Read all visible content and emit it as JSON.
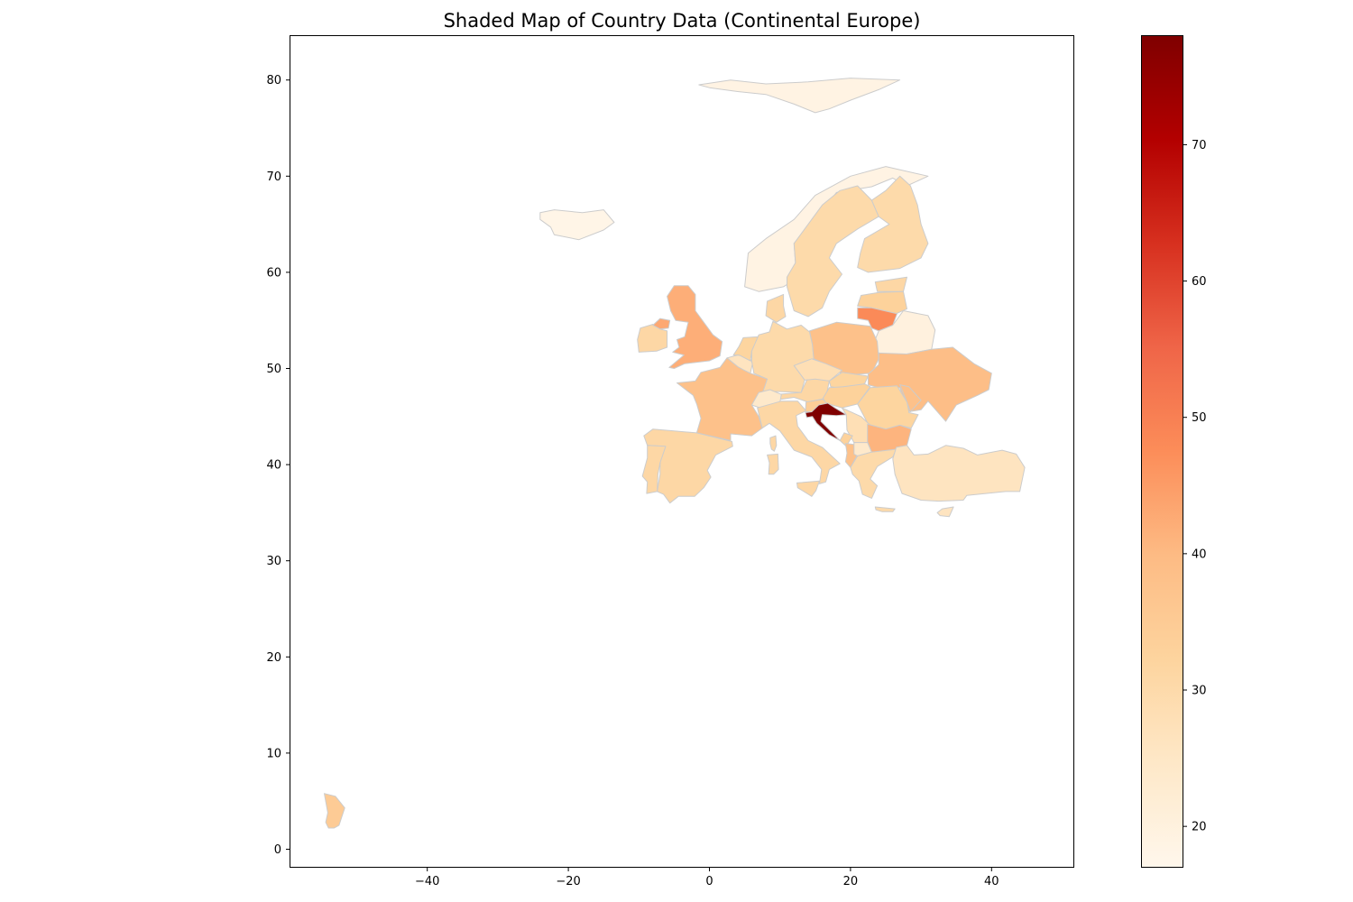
{
  "chart_data": {
    "type": "heatmap",
    "title": "Shaded Map of Country Data (Continental Europe)",
    "xlabel": "",
    "ylabel": "",
    "x_ticks": [
      "−40",
      "−20",
      "0",
      "20",
      "40"
    ],
    "y_ticks": [
      "0",
      "10",
      "20",
      "30",
      "40",
      "50",
      "60",
      "70",
      "80"
    ],
    "xlim": [
      -59.5,
      51.5
    ],
    "ylim": [
      -2,
      84.5
    ],
    "colormap": "OrRd",
    "color_range": [
      17,
      78
    ],
    "colorbar_ticks": [
      "20",
      "30",
      "40",
      "50",
      "60",
      "70"
    ],
    "edge_color": "#cccccc",
    "grid": false,
    "regions": [
      {
        "name": "Norway",
        "value": 19
      },
      {
        "name": "Sweden",
        "value": 30
      },
      {
        "name": "Finland",
        "value": 30
      },
      {
        "name": "Iceland",
        "value": 18
      },
      {
        "name": "Svalbard",
        "value": 19
      },
      {
        "name": "Denmark",
        "value": 31
      },
      {
        "name": "Estonia",
        "value": 31
      },
      {
        "name": "Latvia",
        "value": 33
      },
      {
        "name": "Lithuania",
        "value": 48
      },
      {
        "name": "Belarus",
        "value": 20
      },
      {
        "name": "United Kingdom",
        "value": 42
      },
      {
        "name": "Ireland",
        "value": 31
      },
      {
        "name": "Northern Ireland",
        "value": 43
      },
      {
        "name": "France",
        "value": 38
      },
      {
        "name": "Belgium",
        "value": 26
      },
      {
        "name": "Netherlands",
        "value": 32
      },
      {
        "name": "Germany",
        "value": 30
      },
      {
        "name": "Poland",
        "value": 38
      },
      {
        "name": "Czechia",
        "value": 28
      },
      {
        "name": "Austria",
        "value": 31
      },
      {
        "name": "Switzerland",
        "value": 24
      },
      {
        "name": "Slovakia",
        "value": 32
      },
      {
        "name": "Hungary",
        "value": 33
      },
      {
        "name": "Ukraine",
        "value": 39
      },
      {
        "name": "Moldova",
        "value": 38
      },
      {
        "name": "Romania",
        "value": 32
      },
      {
        "name": "Italy",
        "value": 31
      },
      {
        "name": "Slovenia",
        "value": 34
      },
      {
        "name": "Croatia",
        "value": 78
      },
      {
        "name": "Serbia",
        "value": 28
      },
      {
        "name": "Montenegro",
        "value": 33
      },
      {
        "name": "Albania",
        "value": 38
      },
      {
        "name": "North Macedonia",
        "value": 24
      },
      {
        "name": "Bulgaria",
        "value": 41
      },
      {
        "name": "Greece",
        "value": 30
      },
      {
        "name": "Turkey",
        "value": 26
      },
      {
        "name": "Cyprus",
        "value": 26
      },
      {
        "name": "Spain",
        "value": 31
      },
      {
        "name": "Portugal",
        "value": 31
      },
      {
        "name": "Corsica",
        "value": 31
      },
      {
        "name": "Sardinia",
        "value": 31
      },
      {
        "name": "Sicily",
        "value": 31
      },
      {
        "name": "Crete",
        "value": 30
      },
      {
        "name": "French Guiana",
        "value": 35
      }
    ]
  }
}
